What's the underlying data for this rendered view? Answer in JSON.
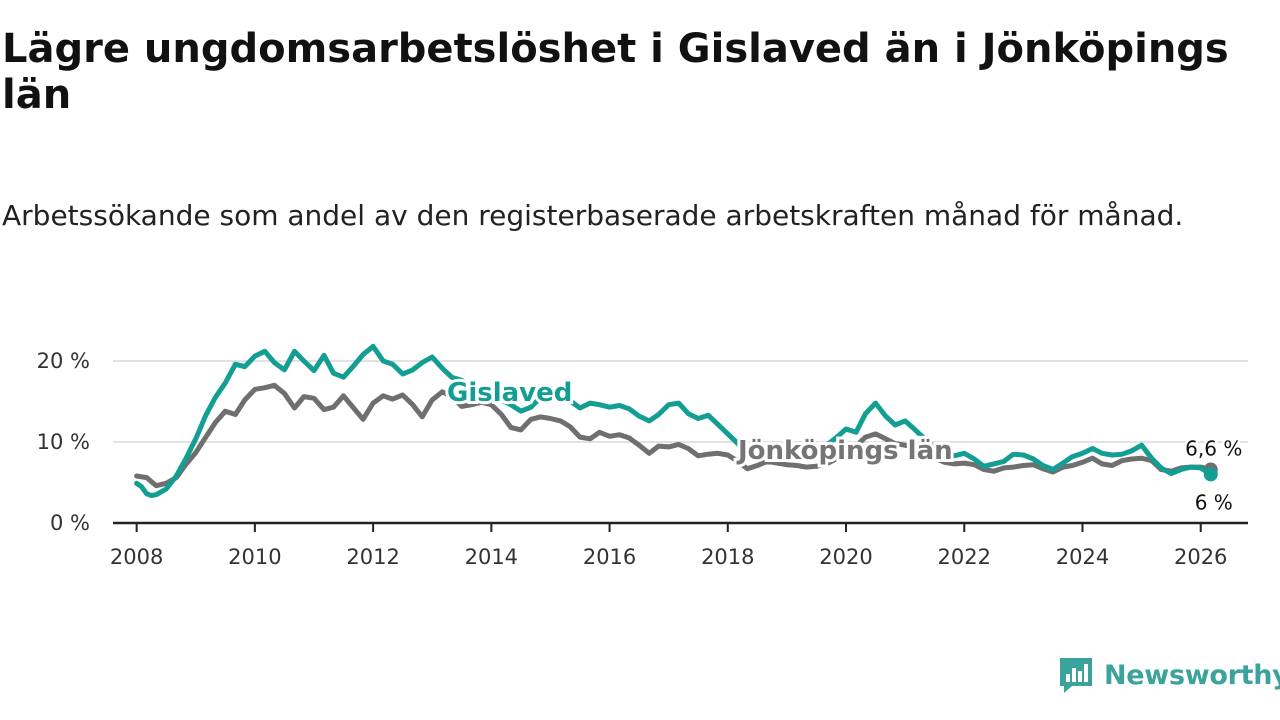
{
  "title": "Lägre ungdomsarbetslöshet i Gislaved än i Jönköpings län",
  "subtitle": "Arbetssökande som andel av den registerbaserade arbetskraften månad för månad.",
  "brand": "Newsworthy",
  "colors": {
    "gislaved": "#139e93",
    "jonkoping": "#6f6f6f",
    "grid": "#d9d9d9",
    "axis": "#222222"
  },
  "chart_data": {
    "type": "line",
    "title": "Lägre ungdomsarbetslöshet i Gislaved än i Jönköpings län",
    "xlabel": "",
    "ylabel": "",
    "xlim": [
      2007.6,
      2026.8
    ],
    "ylim": [
      0,
      20
    ],
    "y_ticks": [
      0,
      10,
      20
    ],
    "y_tick_labels": [
      "0 %",
      "10 %",
      "20 %"
    ],
    "x_ticks": [
      2008,
      2010,
      2012,
      2014,
      2016,
      2018,
      2020,
      2022,
      2024,
      2026
    ],
    "x_tick_labels": [
      "2008",
      "2010",
      "2012",
      "2014",
      "2016",
      "2018",
      "2020",
      "2022",
      "2024",
      "2026"
    ],
    "grid": "horizontal",
    "series": [
      {
        "name": "Jönköpings län",
        "label": "Jönköpings län",
        "end_label": "6,6 %",
        "points": [
          [
            2008.0,
            5.8
          ],
          [
            2008.17,
            5.6
          ],
          [
            2008.33,
            4.6
          ],
          [
            2008.5,
            4.9
          ],
          [
            2008.67,
            5.6
          ],
          [
            2008.83,
            7.2
          ],
          [
            2009.0,
            8.7
          ],
          [
            2009.17,
            10.6
          ],
          [
            2009.33,
            12.4
          ],
          [
            2009.5,
            13.8
          ],
          [
            2009.67,
            13.4
          ],
          [
            2009.83,
            15.2
          ],
          [
            2010.0,
            16.5
          ],
          [
            2010.17,
            16.7
          ],
          [
            2010.33,
            17.0
          ],
          [
            2010.5,
            16.0
          ],
          [
            2010.67,
            14.2
          ],
          [
            2010.83,
            15.6
          ],
          [
            2011.0,
            15.4
          ],
          [
            2011.17,
            14.0
          ],
          [
            2011.33,
            14.3
          ],
          [
            2011.5,
            15.7
          ],
          [
            2011.67,
            14.2
          ],
          [
            2011.83,
            12.8
          ],
          [
            2012.0,
            14.8
          ],
          [
            2012.17,
            15.7
          ],
          [
            2012.33,
            15.3
          ],
          [
            2012.5,
            15.8
          ],
          [
            2012.67,
            14.6
          ],
          [
            2012.83,
            13.1
          ],
          [
            2013.0,
            15.2
          ],
          [
            2013.17,
            16.2
          ],
          [
            2013.33,
            15.6
          ],
          [
            2013.5,
            14.4
          ],
          [
            2013.67,
            14.6
          ],
          [
            2013.83,
            14.9
          ],
          [
            2014.0,
            14.6
          ],
          [
            2014.17,
            13.4
          ],
          [
            2014.33,
            11.8
          ],
          [
            2014.5,
            11.5
          ],
          [
            2014.67,
            12.8
          ],
          [
            2014.83,
            13.1
          ],
          [
            2015.0,
            12.9
          ],
          [
            2015.17,
            12.6
          ],
          [
            2015.33,
            11.9
          ],
          [
            2015.5,
            10.6
          ],
          [
            2015.67,
            10.4
          ],
          [
            2015.83,
            11.2
          ],
          [
            2016.0,
            10.7
          ],
          [
            2016.17,
            10.9
          ],
          [
            2016.33,
            10.5
          ],
          [
            2016.5,
            9.6
          ],
          [
            2016.67,
            8.6
          ],
          [
            2016.83,
            9.5
          ],
          [
            2017.0,
            9.4
          ],
          [
            2017.17,
            9.7
          ],
          [
            2017.33,
            9.2
          ],
          [
            2017.5,
            8.3
          ],
          [
            2017.67,
            8.5
          ],
          [
            2017.83,
            8.6
          ],
          [
            2018.0,
            8.4
          ],
          [
            2018.17,
            7.6
          ],
          [
            2018.33,
            6.7
          ],
          [
            2018.5,
            7.1
          ],
          [
            2018.67,
            7.6
          ],
          [
            2018.83,
            7.4
          ],
          [
            2019.0,
            7.2
          ],
          [
            2019.17,
            7.1
          ],
          [
            2019.33,
            6.9
          ],
          [
            2019.5,
            7.0
          ],
          [
            2019.67,
            7.3
          ],
          [
            2019.83,
            7.9
          ],
          [
            2020.0,
            8.6
          ],
          [
            2020.17,
            9.5
          ],
          [
            2020.33,
            10.6
          ],
          [
            2020.5,
            11.0
          ],
          [
            2020.67,
            10.4
          ],
          [
            2020.83,
            9.8
          ],
          [
            2021.0,
            9.6
          ],
          [
            2021.17,
            9.3
          ],
          [
            2021.33,
            8.6
          ],
          [
            2021.5,
            8.0
          ],
          [
            2021.67,
            7.5
          ],
          [
            2021.83,
            7.3
          ],
          [
            2022.0,
            7.4
          ],
          [
            2022.17,
            7.2
          ],
          [
            2022.33,
            6.6
          ],
          [
            2022.5,
            6.4
          ],
          [
            2022.67,
            6.8
          ],
          [
            2022.83,
            6.9
          ],
          [
            2023.0,
            7.1
          ],
          [
            2023.17,
            7.2
          ],
          [
            2023.33,
            6.7
          ],
          [
            2023.5,
            6.3
          ],
          [
            2023.67,
            6.9
          ],
          [
            2023.83,
            7.1
          ],
          [
            2024.0,
            7.5
          ],
          [
            2024.17,
            8.0
          ],
          [
            2024.33,
            7.3
          ],
          [
            2024.5,
            7.1
          ],
          [
            2024.67,
            7.7
          ],
          [
            2024.83,
            7.9
          ],
          [
            2025.0,
            8.0
          ],
          [
            2025.17,
            7.7
          ],
          [
            2025.33,
            6.6
          ],
          [
            2025.5,
            6.4
          ],
          [
            2025.67,
            6.8
          ],
          [
            2025.83,
            6.9
          ],
          [
            2026.0,
            6.9
          ],
          [
            2026.17,
            6.6
          ]
        ]
      },
      {
        "name": "Gislaved",
        "label": "Gislaved",
        "end_label": "6 %",
        "points": [
          [
            2008.0,
            4.9
          ],
          [
            2008.08,
            4.5
          ],
          [
            2008.17,
            3.6
          ],
          [
            2008.25,
            3.4
          ],
          [
            2008.33,
            3.5
          ],
          [
            2008.5,
            4.2
          ],
          [
            2008.67,
            5.8
          ],
          [
            2008.83,
            7.9
          ],
          [
            2009.0,
            10.4
          ],
          [
            2009.17,
            13.3
          ],
          [
            2009.33,
            15.5
          ],
          [
            2009.5,
            17.3
          ],
          [
            2009.67,
            19.6
          ],
          [
            2009.83,
            19.3
          ],
          [
            2010.0,
            20.6
          ],
          [
            2010.17,
            21.2
          ],
          [
            2010.33,
            19.8
          ],
          [
            2010.5,
            18.9
          ],
          [
            2010.67,
            21.2
          ],
          [
            2010.83,
            20.0
          ],
          [
            2011.0,
            18.8
          ],
          [
            2011.17,
            20.7
          ],
          [
            2011.33,
            18.5
          ],
          [
            2011.5,
            18.0
          ],
          [
            2011.67,
            19.4
          ],
          [
            2011.83,
            20.8
          ],
          [
            2012.0,
            21.8
          ],
          [
            2012.17,
            20.0
          ],
          [
            2012.33,
            19.6
          ],
          [
            2012.5,
            18.4
          ],
          [
            2012.67,
            18.9
          ],
          [
            2012.83,
            19.8
          ],
          [
            2013.0,
            20.5
          ],
          [
            2013.17,
            19.1
          ],
          [
            2013.33,
            18.0
          ],
          [
            2013.5,
            17.6
          ],
          [
            2013.67,
            16.6
          ],
          [
            2013.83,
            16.3
          ],
          [
            2014.0,
            15.9
          ],
          [
            2014.17,
            15.2
          ],
          [
            2014.33,
            14.6
          ],
          [
            2014.5,
            13.8
          ],
          [
            2014.67,
            14.3
          ],
          [
            2014.83,
            15.5
          ],
          [
            2015.0,
            16.3
          ],
          [
            2015.17,
            15.8
          ],
          [
            2015.33,
            15.1
          ],
          [
            2015.5,
            14.2
          ],
          [
            2015.67,
            14.8
          ],
          [
            2015.83,
            14.6
          ],
          [
            2016.0,
            14.3
          ],
          [
            2016.17,
            14.5
          ],
          [
            2016.33,
            14.1
          ],
          [
            2016.5,
            13.2
          ],
          [
            2016.67,
            12.6
          ],
          [
            2016.83,
            13.4
          ],
          [
            2017.0,
            14.6
          ],
          [
            2017.17,
            14.8
          ],
          [
            2017.33,
            13.5
          ],
          [
            2017.5,
            12.9
          ],
          [
            2017.67,
            13.3
          ],
          [
            2017.83,
            12.2
          ],
          [
            2018.0,
            11.0
          ],
          [
            2018.17,
            9.8
          ],
          [
            2018.33,
            8.6
          ],
          [
            2018.5,
            8.4
          ],
          [
            2018.67,
            8.7
          ],
          [
            2018.83,
            8.5
          ],
          [
            2019.0,
            8.2
          ],
          [
            2019.17,
            8.0
          ],
          [
            2019.33,
            8.3
          ],
          [
            2019.5,
            8.9
          ],
          [
            2019.67,
            9.6
          ],
          [
            2019.83,
            10.5
          ],
          [
            2020.0,
            11.6
          ],
          [
            2020.17,
            11.2
          ],
          [
            2020.33,
            13.5
          ],
          [
            2020.5,
            14.8
          ],
          [
            2020.67,
            13.2
          ],
          [
            2020.83,
            12.1
          ],
          [
            2021.0,
            12.6
          ],
          [
            2021.17,
            11.5
          ],
          [
            2021.33,
            10.4
          ],
          [
            2021.5,
            9.4
          ],
          [
            2021.67,
            8.8
          ],
          [
            2021.83,
            8.3
          ],
          [
            2022.0,
            8.6
          ],
          [
            2022.17,
            7.9
          ],
          [
            2022.33,
            7.0
          ],
          [
            2022.5,
            7.3
          ],
          [
            2022.67,
            7.6
          ],
          [
            2022.83,
            8.5
          ],
          [
            2023.0,
            8.4
          ],
          [
            2023.17,
            7.9
          ],
          [
            2023.33,
            7.1
          ],
          [
            2023.5,
            6.6
          ],
          [
            2023.67,
            7.4
          ],
          [
            2023.83,
            8.2
          ],
          [
            2024.0,
            8.6
          ],
          [
            2024.17,
            9.2
          ],
          [
            2024.33,
            8.6
          ],
          [
            2024.5,
            8.4
          ],
          [
            2024.67,
            8.5
          ],
          [
            2024.83,
            8.9
          ],
          [
            2025.0,
            9.6
          ],
          [
            2025.17,
            8.0
          ],
          [
            2025.33,
            6.8
          ],
          [
            2025.5,
            6.1
          ],
          [
            2025.67,
            6.6
          ],
          [
            2025.83,
            6.9
          ],
          [
            2026.0,
            6.8
          ],
          [
            2026.17,
            6.0
          ]
        ]
      }
    ]
  }
}
